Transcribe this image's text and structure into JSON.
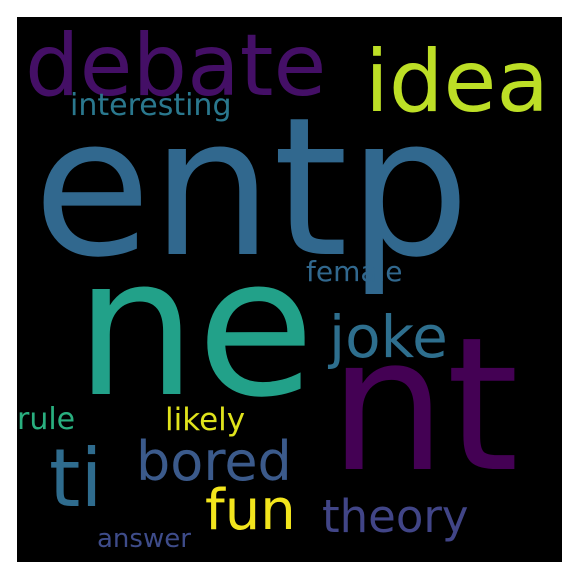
{
  "words": [
    {
      "text": "entp",
      "color": "#31688e"
    },
    {
      "text": "ne",
      "color": "#22a189"
    },
    {
      "text": "nt",
      "color": "#440154"
    },
    {
      "text": "debate",
      "color": "#440f66"
    },
    {
      "text": "idea",
      "color": "#bddf26"
    },
    {
      "text": "interesting",
      "color": "#2a788e"
    },
    {
      "text": "female",
      "color": "#31688e"
    },
    {
      "text": "joke",
      "color": "#2e6f8e"
    },
    {
      "text": "rule",
      "color": "#29af7f"
    },
    {
      "text": "likely",
      "color": "#e0e31c"
    },
    {
      "text": "bored",
      "color": "#3b5a8b"
    },
    {
      "text": "ti",
      "color": "#2f6c8e"
    },
    {
      "text": "fun",
      "color": "#f2e51d"
    },
    {
      "text": "theory",
      "color": "#414587"
    },
    {
      "text": "answer",
      "color": "#3e4c8a"
    }
  ]
}
